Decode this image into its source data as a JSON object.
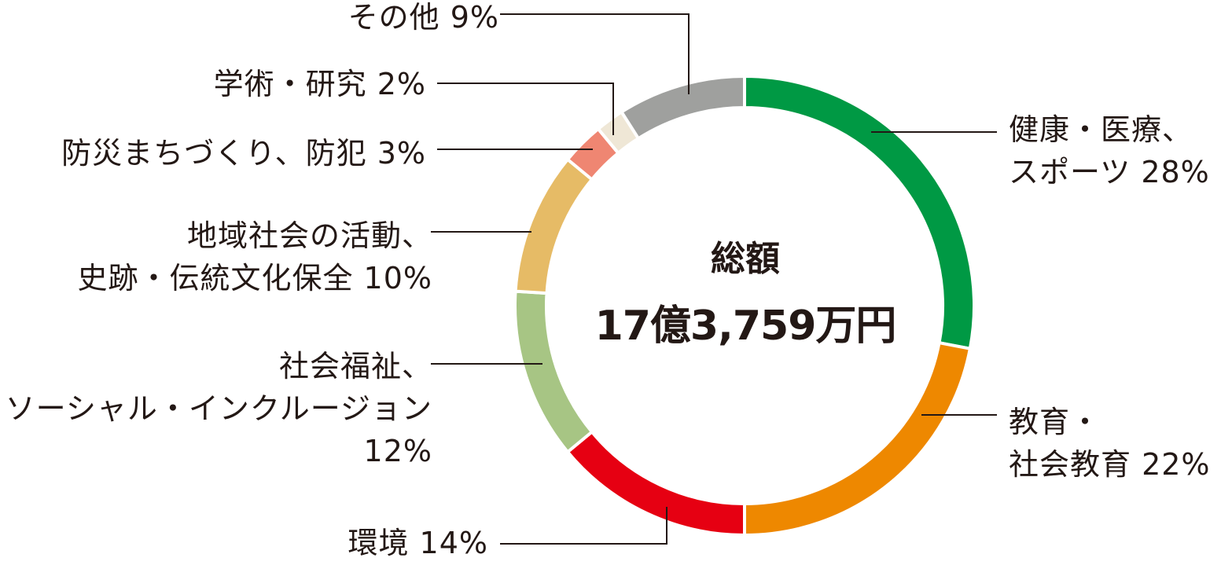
{
  "chart_data": {
    "type": "pie",
    "center": {
      "title": "総額",
      "total": "17億3,759万円"
    },
    "slices": [
      {
        "lines": [
          "健康・医療、",
          "スポーツ 28%"
        ],
        "value": 28,
        "color": "#009944"
      },
      {
        "lines": [
          "教育・",
          "社会教育 22%"
        ],
        "value": 22,
        "color": "#ee8800"
      },
      {
        "lines": [
          "環境 14%"
        ],
        "value": 14,
        "color": "#e60012"
      },
      {
        "lines": [
          "社会福祉、",
          "ソーシャル・インクルージョン",
          "12%"
        ],
        "value": 12,
        "color": "#a7c584"
      },
      {
        "lines": [
          "地域社会の活動、",
          "史跡・伝統文化保全 10%"
        ],
        "value": 10,
        "color": "#e6bb66"
      },
      {
        "lines": [
          "防災まちづくり、防犯 3%"
        ],
        "value": 3,
        "color": "#ef8672"
      },
      {
        "lines": [
          "学術・研究 2%"
        ],
        "value": 2,
        "color": "#efe7d6"
      },
      {
        "lines": [
          "その他 9%"
        ],
        "value": 9,
        "color": "#9fa09e"
      }
    ]
  }
}
